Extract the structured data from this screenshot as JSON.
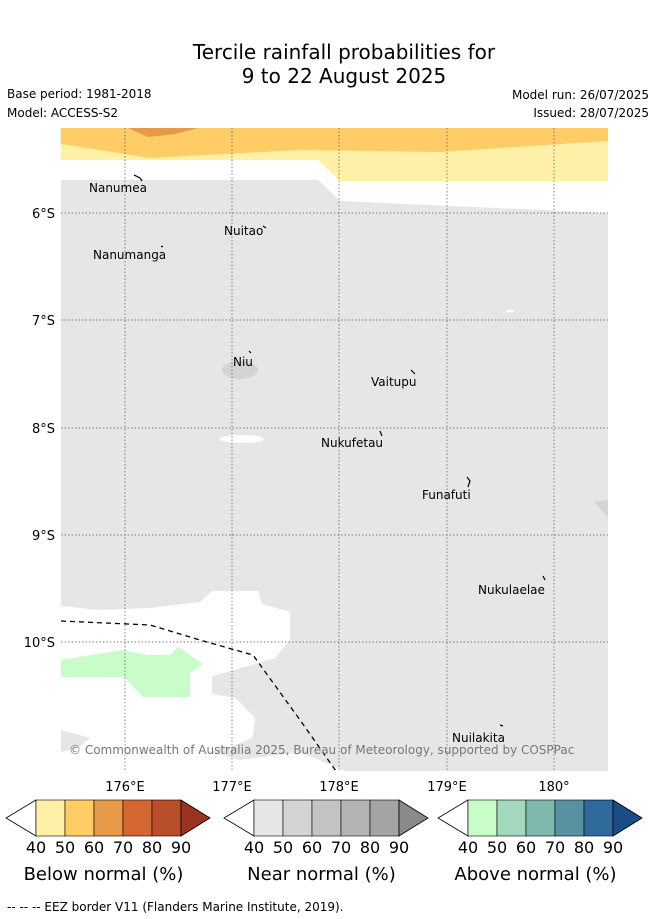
{
  "title": {
    "line1": "Tercile rainfall probabilities for",
    "line2": "9 to 22 August 2025"
  },
  "meta": {
    "base_period": "Base period: 1981-2018",
    "model": "Model: ACCESS-S2",
    "model_run": "Model run: 26/07/2025",
    "issued": "Issued: 28/07/2025"
  },
  "map": {
    "lon_labels": [
      "176°E",
      "177°E",
      "178°E",
      "179°E",
      "180°"
    ],
    "lat_labels": [
      "6°S",
      "7°S",
      "8°S",
      "9°S",
      "10°S"
    ],
    "places": [
      {
        "name": "Nanumea"
      },
      {
        "name": "Nuitao"
      },
      {
        "name": "Nanumanga"
      },
      {
        "name": "Niu"
      },
      {
        "name": "Vaitupu"
      },
      {
        "name": "Nukufetau"
      },
      {
        "name": "Funafuti"
      },
      {
        "name": "Nukulaelae"
      },
      {
        "name": "Nuilakita"
      }
    ],
    "copyright": "© Commonwealth of Australia 2025, Bureau of Meteorology, supported by COSPPac"
  },
  "legends": [
    {
      "title": "Below normal (%)",
      "ticks": [
        "40",
        "50",
        "60",
        "70",
        "80",
        "90"
      ],
      "colors": [
        "#fff0a8",
        "#ffcc66",
        "#e69a48",
        "#d46632",
        "#b84e2a",
        "#9c3220"
      ]
    },
    {
      "title": "Near normal (%)",
      "ticks": [
        "40",
        "50",
        "60",
        "70",
        "80",
        "90"
      ],
      "colors": [
        "#e6e6e6",
        "#d4d4d4",
        "#c4c4c4",
        "#b4b4b4",
        "#a4a4a4",
        "#8a8a8a"
      ]
    },
    {
      "title": "Above normal (%)",
      "ticks": [
        "40",
        "50",
        "60",
        "70",
        "80",
        "90"
      ],
      "colors": [
        "#c8fcc8",
        "#a2d8bc",
        "#80b8b0",
        "#5892a0",
        "#306a9c",
        "#1a4c88"
      ]
    }
  ],
  "footnote": "-- -- -- EEZ border V11 (Flanders Marine Institute, 2019)."
}
